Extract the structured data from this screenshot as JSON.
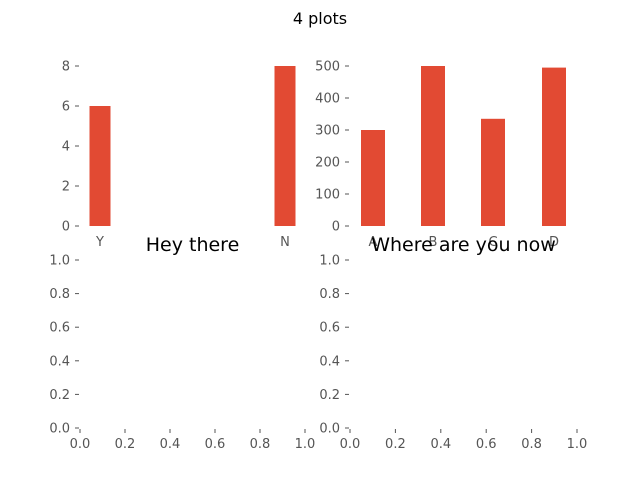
{
  "figure": {
    "title": "4 plots",
    "background": "#ffffff",
    "bar_color": "#E24A33",
    "tick_color": "#555555"
  },
  "chart_data": [
    {
      "type": "bar",
      "title": "",
      "categories": [
        "Y",
        "N"
      ],
      "values": [
        6,
        8
      ],
      "ylim": [
        0,
        8
      ],
      "yticks": [
        0,
        2,
        4,
        6,
        8
      ],
      "xlabel": "",
      "ylabel": "",
      "grid": false
    },
    {
      "type": "bar",
      "title": "",
      "categories": [
        "A",
        "B",
        "C",
        "D"
      ],
      "values": [
        300,
        500,
        335,
        495
      ],
      "ylim": [
        0,
        500
      ],
      "yticks": [
        0,
        100,
        200,
        300,
        400,
        500
      ],
      "xlabel": "",
      "ylabel": "",
      "grid": false
    },
    {
      "type": "line",
      "title": "Hey there",
      "series": [],
      "xlim": [
        0.0,
        1.0
      ],
      "ylim": [
        0.0,
        1.0
      ],
      "xticks": [
        "0.0",
        "0.2",
        "0.4",
        "0.6",
        "0.8",
        "1.0"
      ],
      "yticks": [
        "0.0",
        "0.2",
        "0.4",
        "0.6",
        "0.8",
        "1.0"
      ],
      "grid": false
    },
    {
      "type": "line",
      "title": "Where are you now",
      "series": [],
      "xlim": [
        0.0,
        1.0
      ],
      "ylim": [
        0.0,
        1.0
      ],
      "xticks": [
        "0.0",
        "0.2",
        "0.4",
        "0.6",
        "0.8",
        "1.0"
      ],
      "yticks": [
        "0.0",
        "0.2",
        "0.4",
        "0.6",
        "0.8",
        "1.0"
      ],
      "grid": false
    }
  ]
}
